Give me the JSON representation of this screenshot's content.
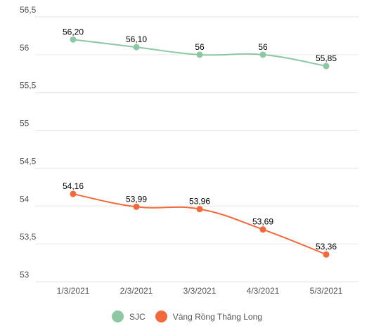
{
  "chart_data": {
    "type": "line",
    "categories": [
      "1/3/2021",
      "2/3/2021",
      "3/3/2021",
      "4/3/2021",
      "5/3/2021"
    ],
    "series": [
      {
        "name": "SJC",
        "color": "#8dc7a3",
        "values": [
          56.2,
          56.1,
          56.0,
          56.0,
          55.85
        ],
        "labels": [
          "56,20",
          "56,10",
          "56",
          "56",
          "55,85"
        ]
      },
      {
        "name": "Vàng Rồng Thăng Long",
        "color": "#f26a3b",
        "values": [
          54.16,
          53.99,
          53.96,
          53.69,
          53.36
        ],
        "labels": [
          "54,16",
          "53,99",
          "53,96",
          "53,69",
          "53,36"
        ]
      }
    ],
    "y_ticks": [
      53,
      53.5,
      54,
      54.5,
      55,
      55.5,
      56,
      56.5
    ],
    "y_tick_labels": [
      "53",
      "53,5",
      "54",
      "54,5",
      "55",
      "55,5",
      "56",
      "56,5"
    ],
    "ylim": [
      53,
      56.5
    ],
    "grid": true,
    "legend_position": "bottom"
  }
}
